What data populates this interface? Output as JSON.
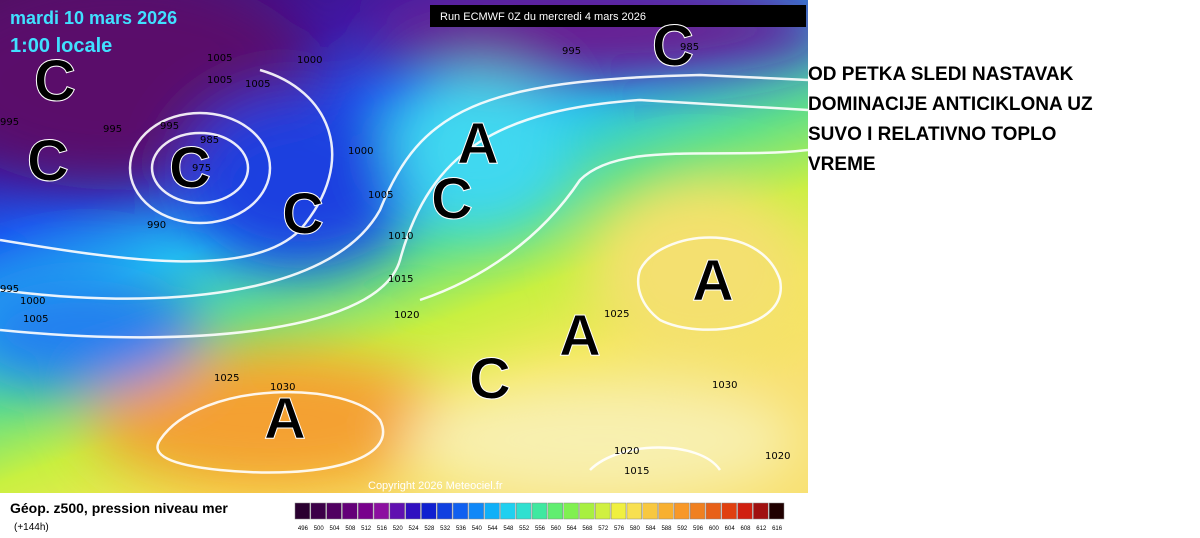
{
  "header": {
    "date": "mardi 10 mars 2026",
    "time": "1:00 locale",
    "run": "Run ECMWF 0Z du mercredi 4 mars 2026"
  },
  "map": {
    "isobar_labels": [
      995,
      985,
      1005,
      1005,
      1005,
      1000,
      995,
      995,
      985,
      975,
      995,
      990,
      1000,
      1005,
      1010,
      1015,
      1020,
      1025,
      1000,
      1005,
      1025,
      1030,
      1030,
      1020,
      1015,
      1020,
      995
    ],
    "centers": [
      "C",
      "C",
      "C",
      "C",
      "C",
      "A",
      "A",
      "A",
      "C",
      "A",
      "C"
    ],
    "copyright": "Copyright 2026 Meteociel.fr"
  },
  "legend": {
    "title": "Géop. z500, pression niveau mer",
    "lead_time": "(+144h)",
    "scale": [
      496,
      500,
      504,
      508,
      512,
      516,
      520,
      524,
      528,
      532,
      536,
      540,
      544,
      548,
      552,
      556,
      560,
      564,
      568,
      572,
      576,
      580,
      584,
      588,
      592,
      596,
      600,
      604,
      608,
      612,
      616
    ]
  },
  "annotation": {
    "lines": [
      "OD PETKA SLEDI NASTAVAK",
      "DOMINACIJE ANTICIKLONA UZ",
      "SUVO I RELATIVNO TOPLO",
      "VREME"
    ]
  }
}
